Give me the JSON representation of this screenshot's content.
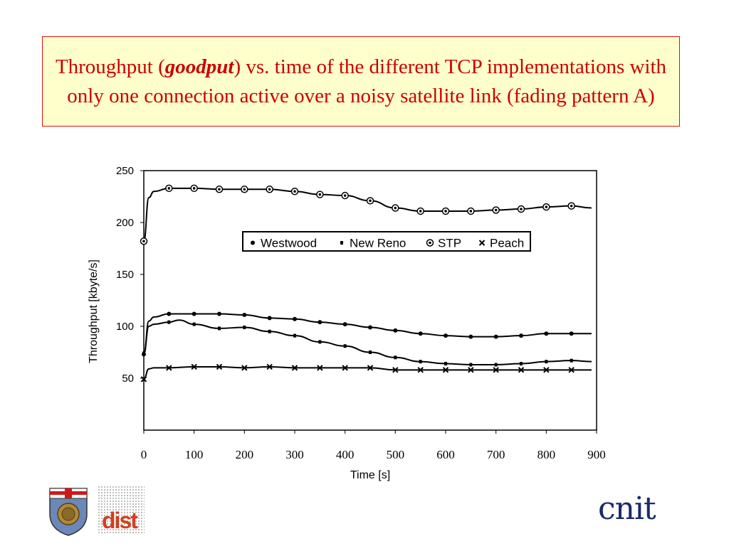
{
  "title": {
    "part1": "Throughput (",
    "emph": "goodput",
    "part2": ")  vs. time of the different TCP implementations with only one connection active over a noisy satellite link (fading pattern A)"
  },
  "chart_data": {
    "type": "line",
    "xlabel": "Time [s]",
    "ylabel": "Throughput [kbyte/s]",
    "xlim": [
      0,
      900
    ],
    "ylim": [
      0,
      250
    ],
    "xticks": [
      0,
      100,
      200,
      300,
      400,
      500,
      600,
      700,
      800,
      900
    ],
    "yticks": [
      50,
      100,
      150,
      200,
      250
    ],
    "grid": false,
    "legend_position": "upper-middle",
    "series": [
      {
        "name": "Westwood",
        "marker": "dot",
        "x": [
          0,
          10,
          20,
          50,
          100,
          150,
          200,
          250,
          300,
          350,
          400,
          450,
          500,
          550,
          600,
          650,
          700,
          750,
          800,
          850,
          890
        ],
        "y": [
          73,
          105,
          109,
          112,
          112,
          112,
          111,
          108,
          107,
          104,
          102,
          99,
          96,
          93,
          91,
          90,
          90,
          91,
          93,
          93,
          93
        ]
      },
      {
        "name": "New Reno",
        "marker": "square",
        "x": [
          0,
          10,
          20,
          50,
          70,
          100,
          150,
          200,
          250,
          300,
          350,
          400,
          450,
          500,
          550,
          600,
          650,
          700,
          750,
          800,
          850,
          890
        ],
        "y": [
          74,
          100,
          102,
          104,
          106,
          102,
          98,
          99,
          95,
          91,
          85,
          81,
          75,
          70,
          66,
          64,
          63,
          63,
          64,
          66,
          67,
          66
        ]
      },
      {
        "name": "STP",
        "marker": "circle",
        "x": [
          0,
          10,
          20,
          50,
          100,
          150,
          200,
          250,
          300,
          350,
          400,
          450,
          500,
          550,
          600,
          650,
          700,
          750,
          800,
          850,
          890
        ],
        "y": [
          182,
          224,
          230,
          233,
          233,
          232,
          232,
          232,
          230,
          227,
          226,
          221,
          214,
          211,
          211,
          211,
          212,
          213,
          215,
          216,
          214
        ]
      },
      {
        "name": "Peach",
        "marker": "x",
        "x": [
          0,
          10,
          20,
          50,
          100,
          150,
          200,
          250,
          300,
          350,
          400,
          450,
          500,
          550,
          600,
          650,
          700,
          750,
          800,
          850,
          890
        ],
        "y": [
          49,
          59,
          60,
          60,
          61,
          61,
          60,
          61,
          60,
          60,
          60,
          60,
          58,
          58,
          58,
          58,
          58,
          58,
          58,
          58,
          58
        ]
      }
    ]
  },
  "logos": {
    "cnit": "cnit",
    "dist": "dist"
  }
}
